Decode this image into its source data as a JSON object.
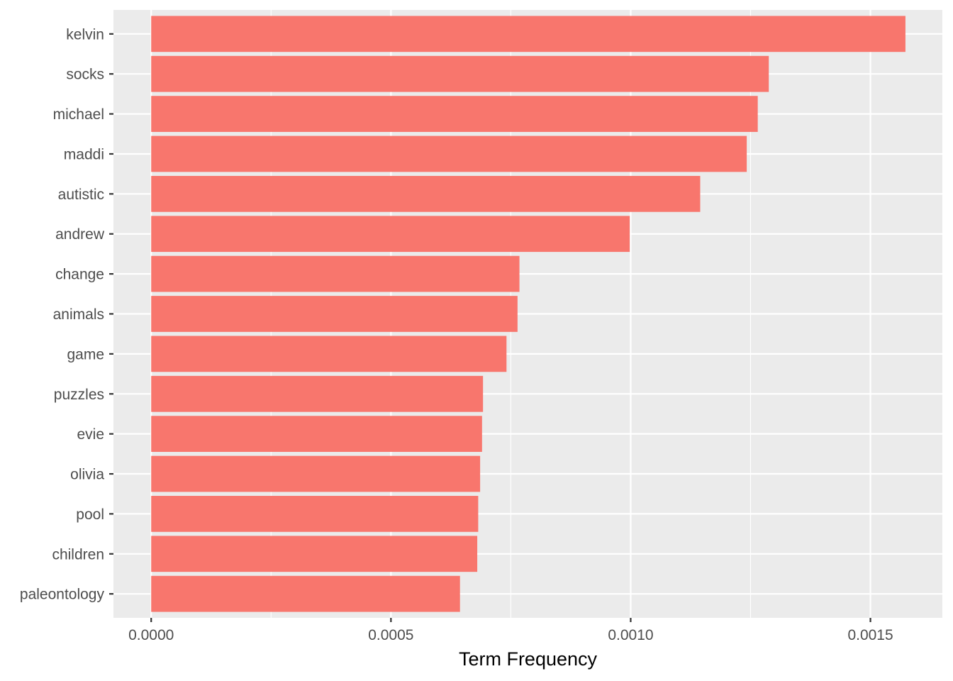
{
  "chart_data": {
    "type": "bar",
    "orientation": "horizontal",
    "categories": [
      "kelvin",
      "socks",
      "michael",
      "maddi",
      "autistic",
      "andrew",
      "change",
      "animals",
      "game",
      "puzzles",
      "evie",
      "olivia",
      "pool",
      "children",
      "paleontology"
    ],
    "values": [
      0.001573,
      0.001288,
      0.001265,
      0.001242,
      0.001145,
      0.000998,
      0.000768,
      0.000764,
      0.000741,
      0.000692,
      0.00069,
      0.000686,
      0.000682,
      0.00068,
      0.000644
    ],
    "xlabel": "Term Frequency",
    "ylabel": "",
    "x_ticks": [
      "0.0000",
      "0.0005",
      "0.0010",
      "0.0015"
    ],
    "xlim": [
      -7.87e-05,
      0.00165
    ],
    "grid": true,
    "bar_color": "#F8766D",
    "panel_color": "#EBEBEB",
    "grid_color": "#FFFFFF"
  }
}
